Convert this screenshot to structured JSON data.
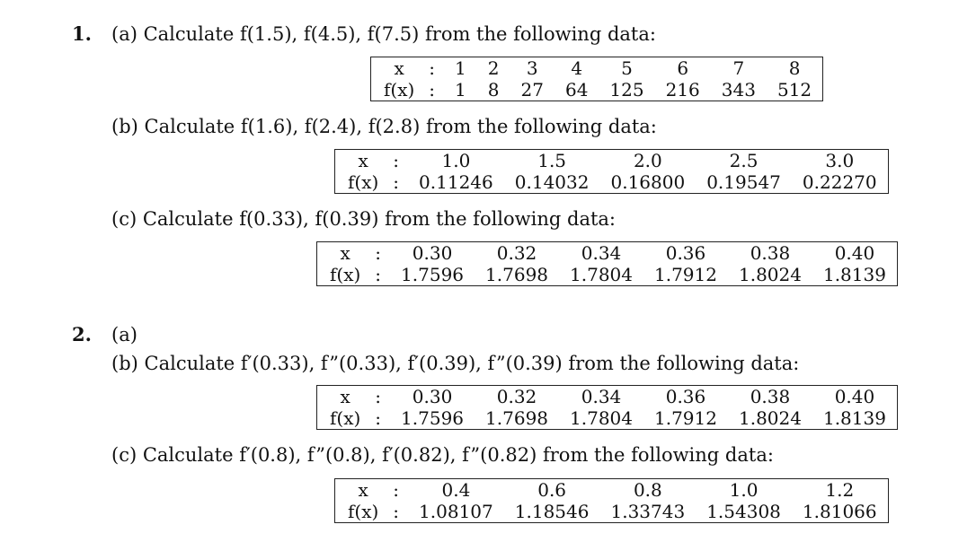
{
  "problems": [
    {
      "number": "1.",
      "parts": [
        {
          "label": "(a)",
          "text": "Calculate f(1.5), f(4.5), f(7.5) from the following data:",
          "table": {
            "x_label": "x",
            "fx_label": "f(x)",
            "sep": ":",
            "x": [
              "1",
              "2",
              "3",
              "4",
              "5",
              "6",
              "7",
              "8"
            ],
            "fx": [
              "1",
              "8",
              "27",
              "64",
              "125",
              "216",
              "343",
              "512"
            ]
          }
        },
        {
          "label": "(b)",
          "text": "Calculate f(1.6), f(2.4), f(2.8) from the following data:",
          "table": {
            "x_label": "x",
            "fx_label": "f(x)",
            "sep": ":",
            "x": [
              "1.0",
              "1.5",
              "2.0",
              "2.5",
              "3.0"
            ],
            "fx": [
              "0.11246",
              "0.14032",
              "0.16800",
              "0.19547",
              "0.22270"
            ]
          }
        },
        {
          "label": "(c)",
          "text": "Calculate f(0.33), f(0.39) from the following data:",
          "table": {
            "x_label": "x",
            "fx_label": "f(x)",
            "sep": ":",
            "x": [
              "0.30",
              "0.32",
              "0.34",
              "0.36",
              "0.38",
              "0.40"
            ],
            "fx": [
              "1.7596",
              "1.7698",
              "1.7804",
              "1.7912",
              "1.8024",
              "1.8139"
            ]
          }
        }
      ]
    },
    {
      "number": "2.",
      "parts": [
        {
          "label": "(a)",
          "text": ""
        },
        {
          "label": "(b)",
          "text": "Calculate f′(0.33), f”(0.33), f′(0.39), f”(0.39) from the following data:",
          "table": {
            "x_label": "x",
            "fx_label": "f(x)",
            "sep": ":",
            "x": [
              "0.30",
              "0.32",
              "0.34",
              "0.36",
              "0.38",
              "0.40"
            ],
            "fx": [
              "1.7596",
              "1.7698",
              "1.7804",
              "1.7912",
              "1.8024",
              "1.8139"
            ]
          }
        },
        {
          "label": "(c)",
          "text": "Calculate f′(0.8), f”(0.8), f′(0.82), f”(0.82) from the following data:",
          "table": {
            "x_label": "x",
            "fx_label": "f(x)",
            "sep": ":",
            "x": [
              "0.4",
              "0.6",
              "0.8",
              "1.0",
              "1.2"
            ],
            "fx": [
              "1.08107",
              "1.18546",
              "1.33743",
              "1.54308",
              "1.81066"
            ]
          }
        }
      ]
    }
  ]
}
